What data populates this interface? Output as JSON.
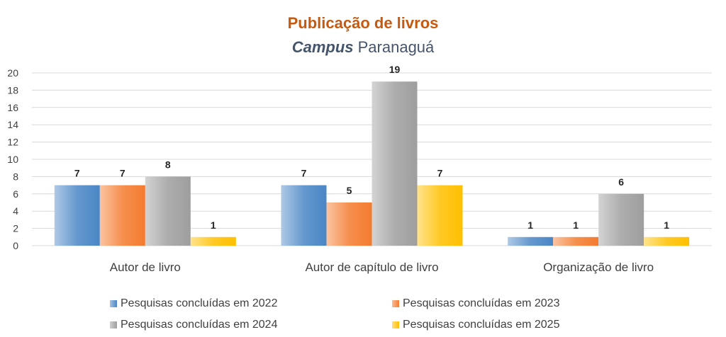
{
  "chart_data": {
    "type": "bar",
    "title": "Publicação de livros",
    "subtitle_italic": "Campus",
    "subtitle_rest": " Paranaguá",
    "categories": [
      "Autor de livro",
      "Autor de capítulo de livro",
      "Organização de livro"
    ],
    "series": [
      {
        "name": "Pesquisas concluídas em 2022",
        "values": [
          7,
          7,
          1
        ],
        "color": "#4a86c5"
      },
      {
        "name": "Pesquisas concluídas em 2023",
        "values": [
          7,
          5,
          1
        ],
        "color": "#f47b2f"
      },
      {
        "name": "Pesquisas concluídas em 2024",
        "values": [
          8,
          19,
          6
        ],
        "color": "#9e9e9e"
      },
      {
        "name": "Pesquisas concluídas em 2025",
        "values": [
          1,
          7,
          1
        ],
        "color": "#ffc000"
      }
    ],
    "ylim": [
      0,
      20
    ],
    "yticks": [
      0,
      2,
      4,
      6,
      8,
      10,
      12,
      14,
      16,
      18,
      20
    ],
    "grid": true,
    "legend_position": "bottom",
    "title_color": "#c55a11",
    "subtitle_color": "#44546a"
  }
}
